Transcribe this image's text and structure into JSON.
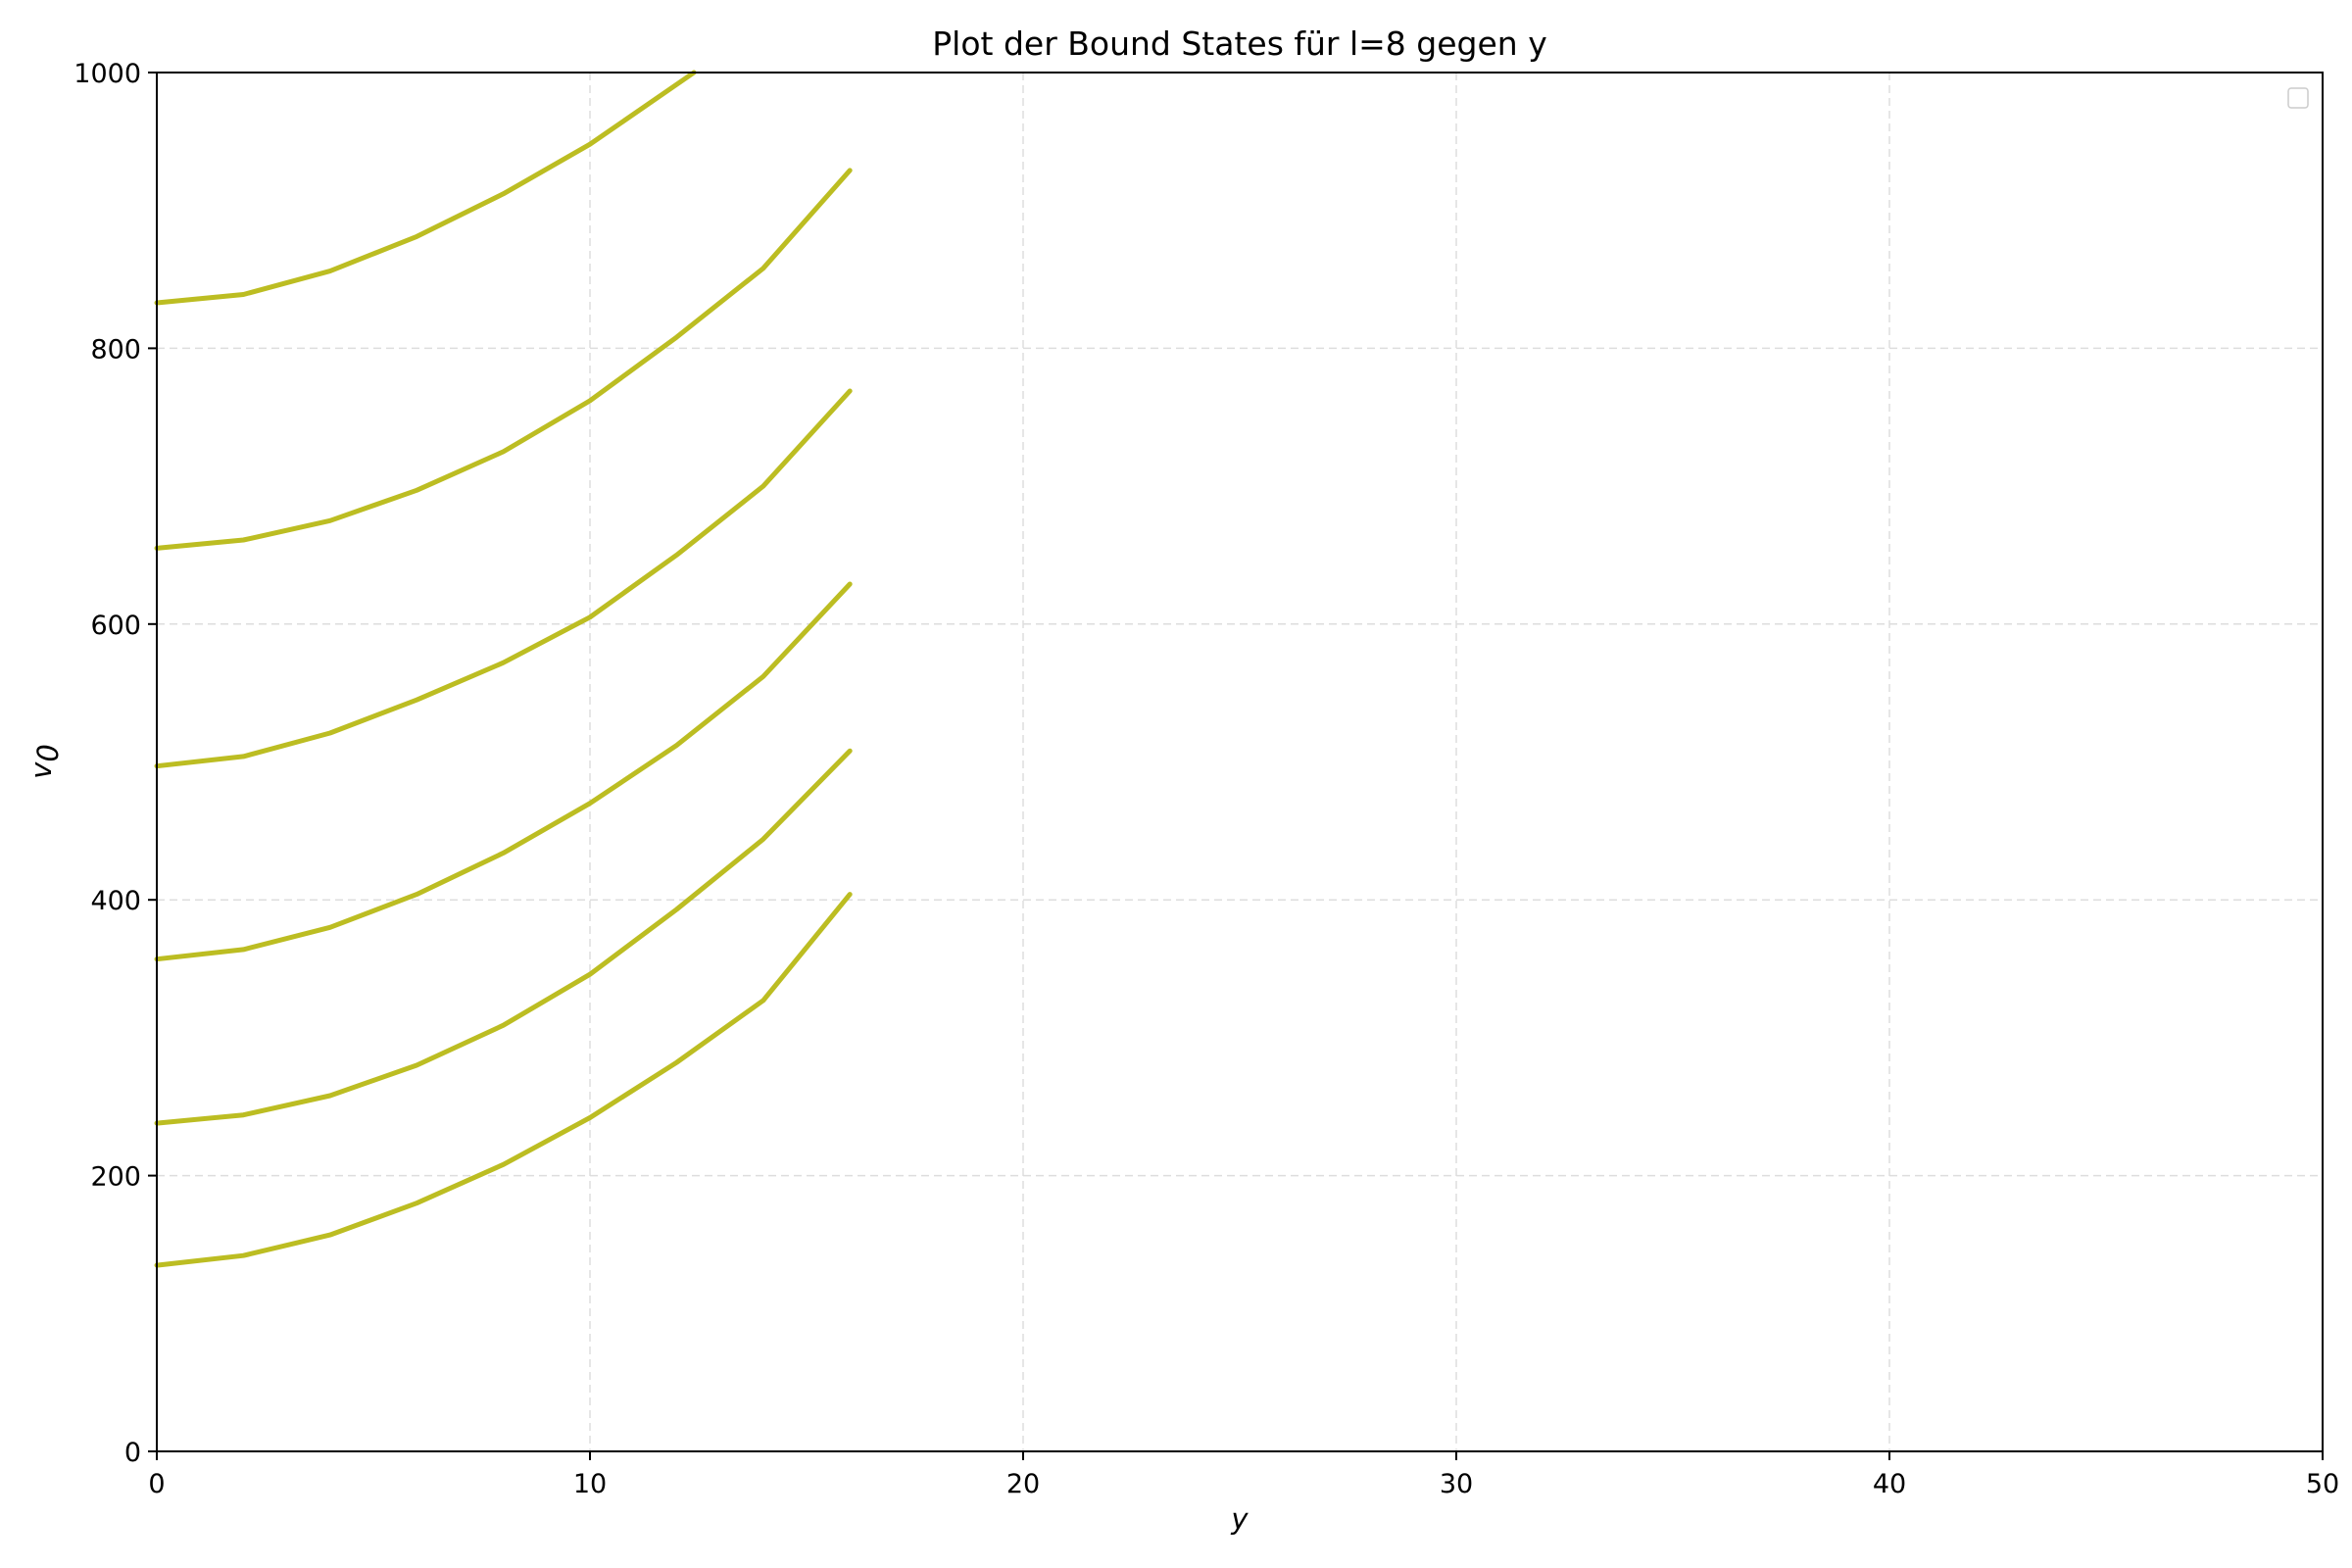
{
  "chart_data": {
    "type": "line",
    "title": "Plot der Bound States für l=8 gegen y",
    "xlabel": "y",
    "ylabel": "v",
    "ylabel_subscript": "0",
    "xlim": [
      0,
      50
    ],
    "ylim": [
      0,
      1000
    ],
    "xticks": [
      "0",
      "10",
      "20",
      "30",
      "40",
      "50"
    ],
    "yticks": [
      "0",
      "200",
      "400",
      "600",
      "800",
      "1000"
    ],
    "grid": true,
    "legend": "top-right, empty",
    "series_color": "#bcbd22",
    "series": [
      {
        "x": [
          0,
          2,
          4,
          6,
          8,
          10,
          12,
          14,
          16
        ],
        "values": [
          135,
          142,
          157,
          180,
          208,
          242,
          282,
          327,
          404
        ]
      },
      {
        "x": [
          0,
          2,
          4,
          6,
          8,
          10,
          12,
          14,
          16
        ],
        "values": [
          238,
          244,
          258,
          280,
          309,
          346,
          393,
          444,
          508
        ]
      },
      {
        "x": [
          0,
          2,
          4,
          6,
          8,
          10,
          12,
          14,
          16
        ],
        "values": [
          357,
          364,
          380,
          404,
          434,
          470,
          512,
          562,
          629
        ]
      },
      {
        "x": [
          0,
          2,
          4,
          6,
          8,
          10,
          12,
          14,
          16
        ],
        "values": [
          497,
          504,
          521,
          545,
          572,
          605,
          650,
          700,
          769
        ]
      },
      {
        "x": [
          0,
          2,
          4,
          6,
          8,
          10,
          12,
          14,
          16
        ],
        "values": [
          655,
          661,
          675,
          697,
          725,
          762,
          808,
          858,
          929
        ]
      },
      {
        "x": [
          0,
          2,
          4,
          6,
          8,
          10,
          12.4
        ],
        "values": [
          833,
          839,
          856,
          881,
          912,
          948,
          1000
        ]
      }
    ]
  }
}
